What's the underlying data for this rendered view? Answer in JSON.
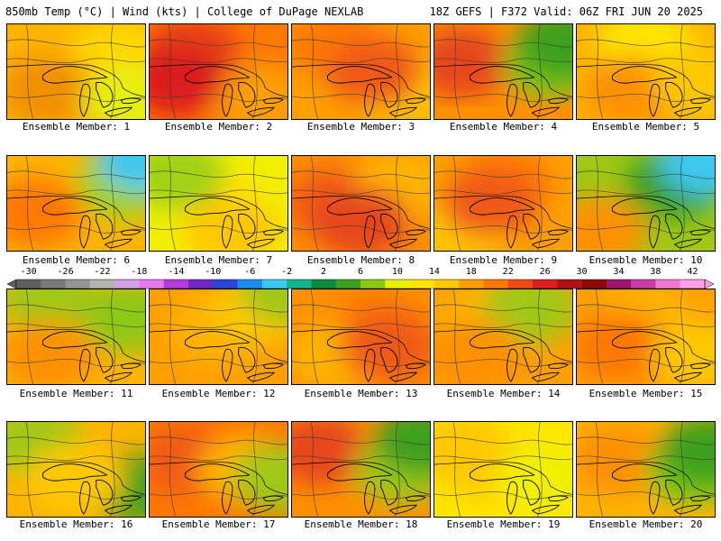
{
  "header": {
    "title": "850mb Temp (°C) | Wind (kts) | College of DuPage NEXLAB",
    "run_info": "18Z GEFS | F372 Valid: 06Z FRI JUN 20 2025"
  },
  "colorbar": {
    "labels": [
      "-30",
      "-26",
      "-22",
      "-18",
      "-14",
      "-10",
      "-6",
      "-2",
      "2",
      "6",
      "10",
      "14",
      "18",
      "22",
      "26",
      "30",
      "34",
      "38",
      "42"
    ],
    "colors": [
      "#5f5f5f",
      "#7a7a7a",
      "#969696",
      "#b4b4b4",
      "#d2a0e6",
      "#e678f0",
      "#b43cdc",
      "#6e28c8",
      "#2846dc",
      "#1e8cf0",
      "#3cc8f0",
      "#14b48c",
      "#0a8c3c",
      "#3ca01e",
      "#8cc814",
      "#e6f00a",
      "#ffe600",
      "#ffc800",
      "#ffa000",
      "#ff7800",
      "#f04b14",
      "#dc1e1e",
      "#b40f14",
      "#8c0a0a",
      "#a0146e",
      "#c83caa",
      "#f078d2",
      "#ffa0e6"
    ]
  },
  "panels": [
    {
      "caption": "Ensemble Member: 1"
    },
    {
      "caption": "Ensemble Member: 2"
    },
    {
      "caption": "Ensemble Member: 3"
    },
    {
      "caption": "Ensemble Member: 4"
    },
    {
      "caption": "Ensemble Member: 5"
    },
    {
      "caption": "Ensemble Member: 6"
    },
    {
      "caption": "Ensemble Member: 7"
    },
    {
      "caption": "Ensemble Member: 8"
    },
    {
      "caption": "Ensemble Member: 9"
    },
    {
      "caption": "Ensemble Member: 10"
    },
    {
      "caption": "Ensemble Member: 11"
    },
    {
      "caption": "Ensemble Member: 12"
    },
    {
      "caption": "Ensemble Member: 13"
    },
    {
      "caption": "Ensemble Member: 14"
    },
    {
      "caption": "Ensemble Member: 15"
    },
    {
      "caption": "Ensemble Member: 16"
    },
    {
      "caption": "Ensemble Member: 17"
    },
    {
      "caption": "Ensemble Member: 18"
    },
    {
      "caption": "Ensemble Member: 19"
    },
    {
      "caption": "Ensemble Member: 20"
    }
  ],
  "panel_fields": [
    {
      "base": "#ffb400",
      "blobs": [
        [
          "#ffd700",
          0.8,
          0.3
        ],
        [
          "#f09000",
          0.3,
          0.7
        ],
        [
          "#e6f00a",
          0.9,
          0.8
        ]
      ]
    },
    {
      "base": "#ff7800",
      "blobs": [
        [
          "#e63c14",
          0.3,
          0.3
        ],
        [
          "#ffa000",
          0.8,
          0.8
        ],
        [
          "#dc1e1e",
          0.2,
          0.6
        ]
      ]
    },
    {
      "base": "#ffa000",
      "blobs": [
        [
          "#ff7800",
          0.3,
          0.2
        ],
        [
          "#ffc800",
          0.8,
          0.7
        ],
        [
          "#f05a14",
          0.6,
          0.5
        ]
      ]
    },
    {
      "base": "#ff9000",
      "blobs": [
        [
          "#e6461e",
          0.2,
          0.4
        ],
        [
          "#78c814",
          0.85,
          0.4
        ],
        [
          "#3ca01e",
          0.95,
          0.2
        ]
      ]
    },
    {
      "base": "#ffb400",
      "blobs": [
        [
          "#ffe600",
          0.5,
          0.2
        ],
        [
          "#ff9000",
          0.4,
          0.7
        ],
        [
          "#ffc800",
          0.9,
          0.6
        ]
      ]
    },
    {
      "base": "#ffb400",
      "blobs": [
        [
          "#ff7800",
          0.2,
          0.6
        ],
        [
          "#a0d214",
          0.85,
          0.3
        ],
        [
          "#3cc8f0",
          1.0,
          0.0
        ]
      ]
    },
    {
      "base": "#f0f000",
      "blobs": [
        [
          "#ffe600",
          0.5,
          0.5
        ],
        [
          "#a0d214",
          0.2,
          0.2
        ],
        [
          "#ffc800",
          0.6,
          0.8
        ]
      ]
    },
    {
      "base": "#ff9000",
      "blobs": [
        [
          "#f05a14",
          0.3,
          0.5
        ],
        [
          "#ffb400",
          0.8,
          0.3
        ],
        [
          "#e6461e",
          0.5,
          0.7
        ]
      ]
    },
    {
      "base": "#ffa000",
      "blobs": [
        [
          "#ff7800",
          0.5,
          0.3
        ],
        [
          "#ffc800",
          0.2,
          0.8
        ],
        [
          "#f05a14",
          0.4,
          0.5
        ]
      ]
    },
    {
      "base": "#a0c814",
      "blobs": [
        [
          "#3ca01e",
          0.7,
          0.3
        ],
        [
          "#3cc8f0",
          0.95,
          0.05
        ],
        [
          "#ff9000",
          0.15,
          0.8
        ]
      ]
    },
    {
      "base": "#ffb400",
      "blobs": [
        [
          "#a0c814",
          0.3,
          0.1
        ],
        [
          "#8cc814",
          0.9,
          0.3
        ],
        [
          "#ff9000",
          0.3,
          0.7
        ]
      ]
    },
    {
      "base": "#ffa000",
      "blobs": [
        [
          "#ffb400",
          0.5,
          0.4
        ],
        [
          "#ffc800",
          0.8,
          0.2
        ],
        [
          "#a0c814",
          1.0,
          0.0
        ]
      ]
    },
    {
      "base": "#ff9000",
      "blobs": [
        [
          "#ff7800",
          0.6,
          0.4
        ],
        [
          "#ffb400",
          0.3,
          0.7
        ],
        [
          "#f05a14",
          0.7,
          0.6
        ]
      ]
    },
    {
      "base": "#ffa000",
      "blobs": [
        [
          "#ffb400",
          0.4,
          0.3
        ],
        [
          "#a0c814",
          0.7,
          0.2
        ],
        [
          "#ff9000",
          0.3,
          0.7
        ]
      ]
    },
    {
      "base": "#ffa000",
      "blobs": [
        [
          "#ffb400",
          0.5,
          0.3
        ],
        [
          "#ff7800",
          0.3,
          0.6
        ],
        [
          "#ffc800",
          0.9,
          0.7
        ]
      ]
    },
    {
      "base": "#ffb400",
      "blobs": [
        [
          "#a0c814",
          0.2,
          0.2
        ],
        [
          "#3ca01e",
          0.9,
          0.7
        ],
        [
          "#ffc800",
          0.5,
          0.6
        ]
      ]
    },
    {
      "base": "#ff7800",
      "blobs": [
        [
          "#f05a14",
          0.3,
          0.4
        ],
        [
          "#ffb400",
          0.7,
          0.5
        ],
        [
          "#a0c814",
          0.95,
          0.6
        ]
      ]
    },
    {
      "base": "#ff9000",
      "blobs": [
        [
          "#e6461e",
          0.2,
          0.3
        ],
        [
          "#a0c814",
          0.8,
          0.5
        ],
        [
          "#3ca01e",
          0.95,
          0.2
        ]
      ]
    },
    {
      "base": "#ffe600",
      "blobs": [
        [
          "#ffd200",
          0.4,
          0.5
        ],
        [
          "#ffc800",
          0.2,
          0.3
        ],
        [
          "#f0f000",
          0.8,
          0.6
        ]
      ]
    },
    {
      "base": "#ffb400",
      "blobs": [
        [
          "#ff9000",
          0.3,
          0.4
        ],
        [
          "#78c814",
          0.85,
          0.5
        ],
        [
          "#3ca01e",
          0.95,
          0.3
        ]
      ]
    }
  ]
}
